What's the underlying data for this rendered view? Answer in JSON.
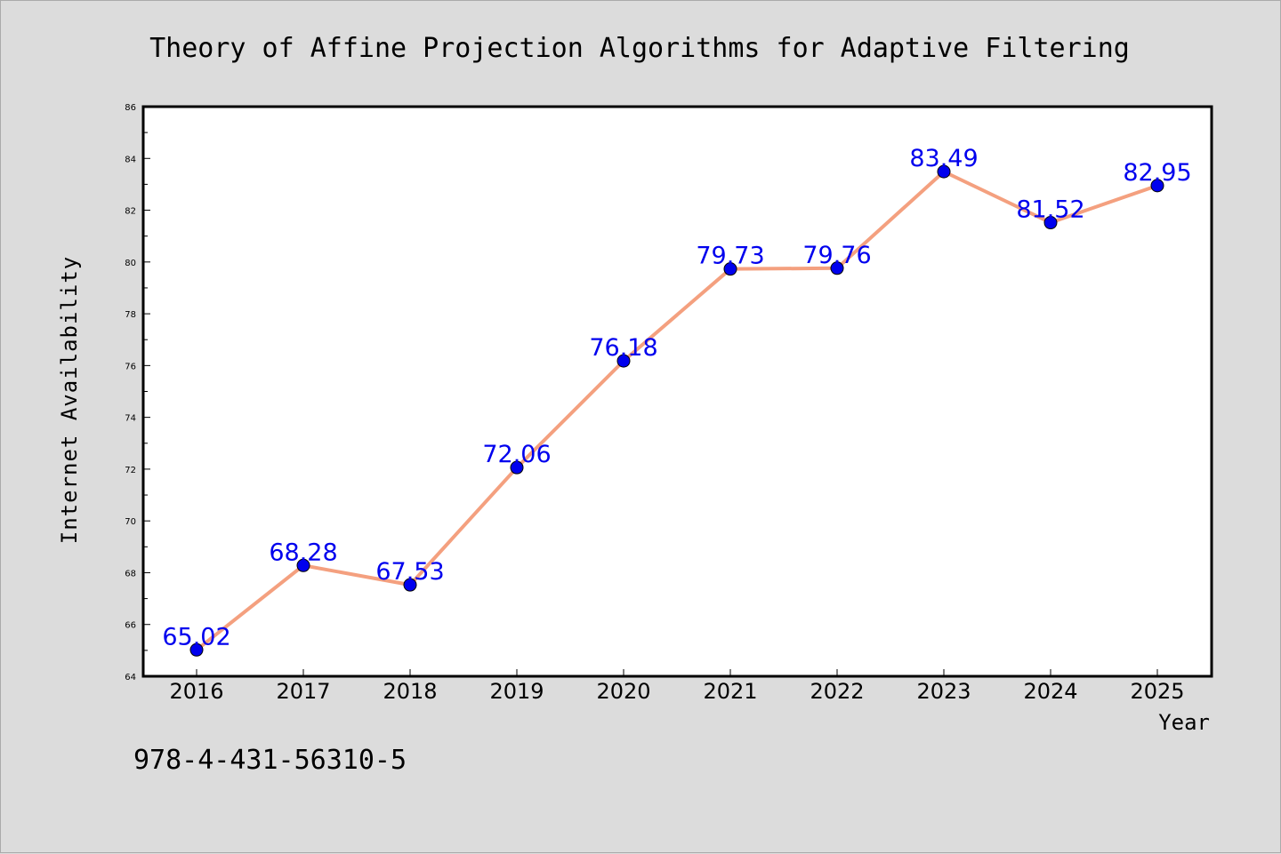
{
  "chart_data": {
    "type": "line",
    "title": "Theory of Affine Projection Algorithms for Adaptive Filtering",
    "xlabel": "Year",
    "ylabel": "Internet Availability",
    "categories": [
      "2016",
      "2017",
      "2018",
      "2019",
      "2020",
      "2021",
      "2022",
      "2023",
      "2024",
      "2025"
    ],
    "series": [
      {
        "values": [
          65.02,
          68.28,
          67.53,
          72.06,
          76.18,
          79.73,
          79.76,
          83.49,
          81.52,
          82.95
        ],
        "data_labels": [
          "65.02",
          "68.28",
          "67.53",
          "72.06",
          "76.18",
          "79.73",
          "79.76",
          "83.49",
          "81.52",
          "82.95"
        ]
      }
    ],
    "ylim": [
      64,
      86
    ],
    "yticks": [
      "64",
      "66",
      "68",
      "70",
      "72",
      "74",
      "76",
      "78",
      "80",
      "82",
      "84",
      "86"
    ],
    "grid": false,
    "line_color": "#f4a07f",
    "marker_color": "#0000ee",
    "label_color": "#0000ee",
    "background_color": "#dcdcdc",
    "plot_background_color": "#ffffff"
  },
  "footer": {
    "isbn": "978-4-431-56310-5"
  }
}
